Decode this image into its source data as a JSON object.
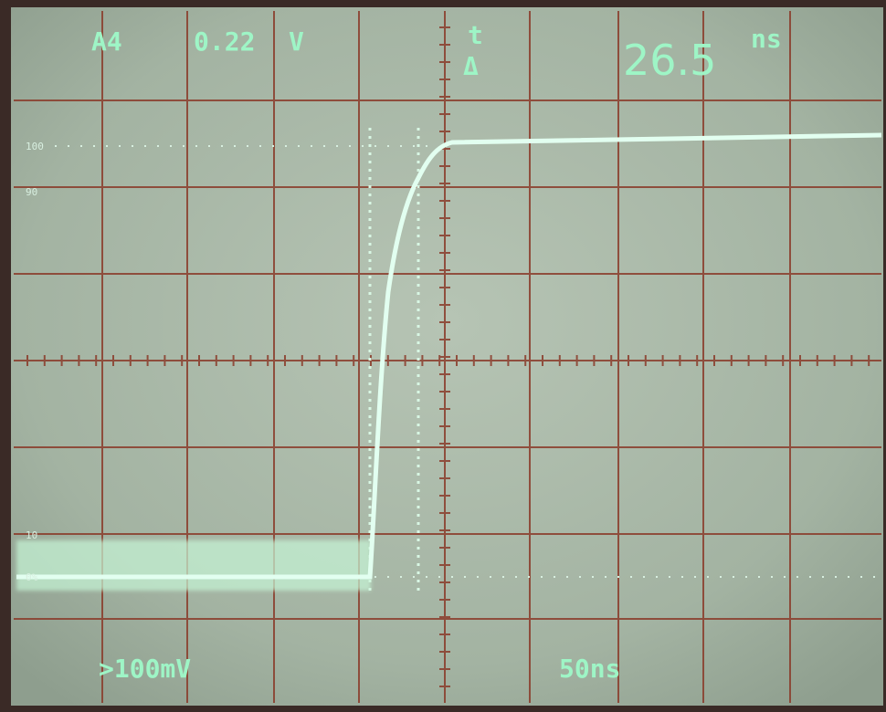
{
  "readout": {
    "channel": "A4",
    "scale_value": "0.22",
    "scale_unit": "V",
    "time_symbol": "t",
    "delta_symbol": "Δ",
    "delta_value": "26.5",
    "delta_unit": "ns"
  },
  "levels": {
    "top": "100",
    "upper": "90",
    "lower": "10",
    "bottom": "0%"
  },
  "footer": {
    "trigger": ">100mV",
    "timebase": "50ns"
  }
}
